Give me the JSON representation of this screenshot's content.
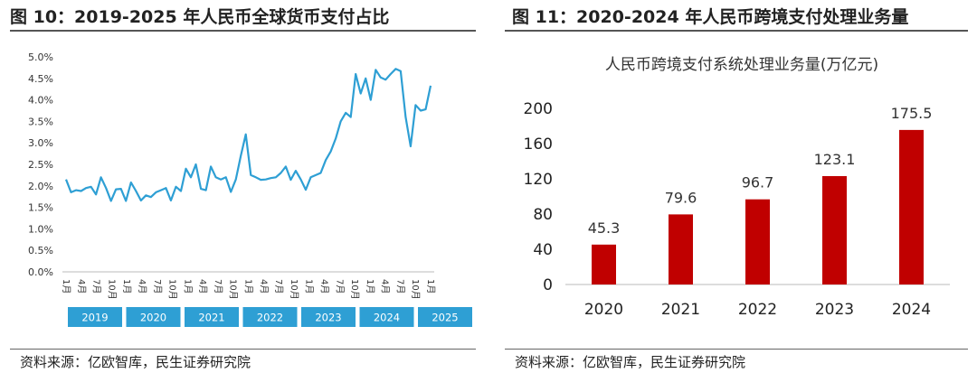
{
  "left": {
    "title": "图 10：2019-2025 年人民币全球货币支付占比",
    "source": "资料来源：亿欧智库，民生证券研究院"
  },
  "right": {
    "title": "图 11：2020-2024 年人民币跨境支付处理业务量",
    "source": "资料来源：亿欧智库，民生证券研究院"
  },
  "colors": {
    "line": "#2e9fd4",
    "bar": "#c00000",
    "year_box": "#2e9fd4"
  },
  "chart_data": [
    {
      "type": "line",
      "title": "",
      "y_unit": "%",
      "ylim": [
        0,
        5
      ],
      "y_ticks": [
        "0.0%",
        "0.5%",
        "1.0%",
        "1.5%",
        "2.0%",
        "2.5%",
        "3.0%",
        "3.5%",
        "4.0%",
        "4.5%",
        "5.0%"
      ],
      "x_tick_labels": [
        "1月",
        "4月",
        "7月",
        "10月",
        "1月",
        "4月",
        "7月",
        "10月",
        "1月",
        "4月",
        "7月",
        "10月",
        "1月",
        "4月",
        "7月",
        "10月",
        "1月",
        "4月",
        "7月",
        "10月",
        "1月",
        "4月",
        "7月",
        "10月",
        "1月"
      ],
      "year_groups": [
        "2019",
        "2020",
        "2021",
        "2022",
        "2023",
        "2024",
        "2025"
      ],
      "series": [
        {
          "values": [
            2.15,
            1.85,
            1.9,
            1.88,
            1.95,
            1.98,
            1.8,
            2.2,
            1.95,
            1.65,
            1.92,
            1.93,
            1.65,
            2.08,
            1.88,
            1.66,
            1.78,
            1.74,
            1.85,
            1.9,
            1.95,
            1.66,
            1.98,
            1.88,
            2.4,
            2.2,
            2.5,
            1.93,
            1.9,
            2.45,
            2.2,
            2.15,
            2.2,
            1.86,
            2.15,
            2.7,
            3.2,
            2.25,
            2.2,
            2.14,
            2.15,
            2.18,
            2.2,
            2.3,
            2.45,
            2.14,
            2.35,
            2.15,
            1.91,
            2.2,
            2.25,
            2.3,
            2.6,
            2.8,
            3.1,
            3.5,
            3.7,
            3.6,
            4.6,
            4.15,
            4.5,
            4.0,
            4.7,
            4.52,
            4.47,
            4.6,
            4.72,
            4.67,
            3.6,
            2.92,
            3.88,
            3.75,
            3.78,
            4.33
          ]
        }
      ],
      "grid": false
    },
    {
      "type": "bar",
      "title": "人民币跨境支付系统处理业务量(万亿元)",
      "categories": [
        "2020",
        "2021",
        "2022",
        "2023",
        "2024"
      ],
      "values": [
        45.3,
        79.6,
        96.7,
        123.1,
        175.5
      ],
      "value_labels": [
        "45.3",
        "79.6",
        "96.7",
        "123.1",
        "175.5"
      ],
      "y_ticks": [
        "0",
        "40",
        "80",
        "120",
        "160",
        "200"
      ],
      "ylim": [
        0,
        200
      ],
      "grid": false
    }
  ]
}
